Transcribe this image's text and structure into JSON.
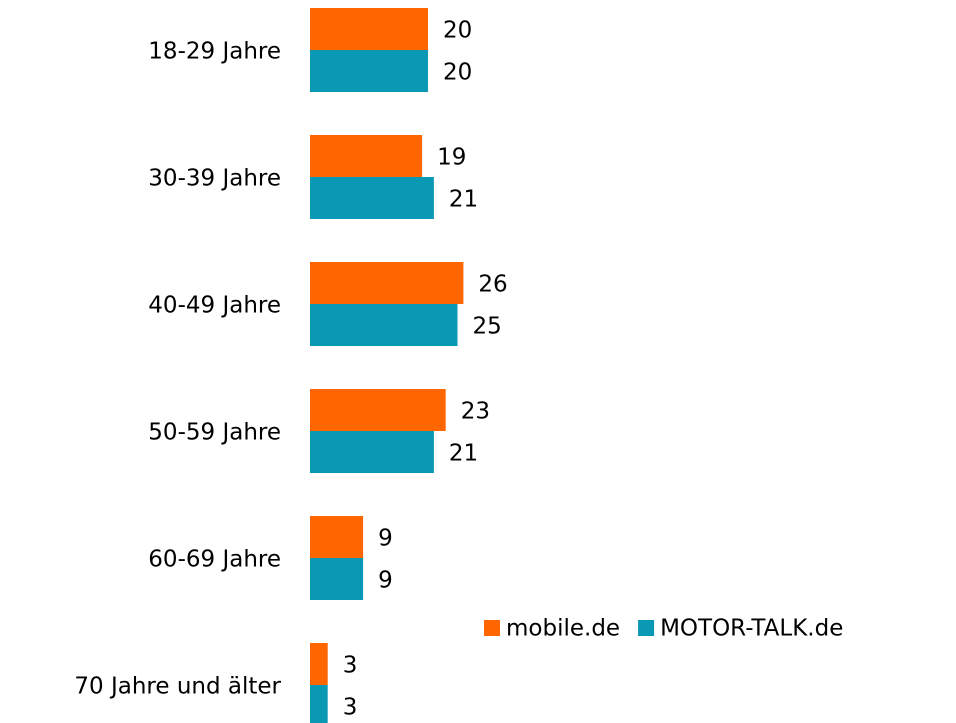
{
  "chart_data": {
    "type": "hbar",
    "categories": [
      "18-29 Jahre",
      "30-39 Jahre",
      "40-49 Jahre",
      "50-59 Jahre",
      "60-69 Jahre",
      "70 Jahre und älter"
    ],
    "series": [
      {
        "name": "mobile.de",
        "color": "#ff6600",
        "values": [
          20,
          19,
          26,
          23,
          9,
          3
        ]
      },
      {
        "name": "MOTOR-TALK.de",
        "color": "#0a99b5",
        "values": [
          20,
          21,
          25,
          21,
          9,
          3
        ]
      }
    ],
    "xlim": [
      0,
      100
    ],
    "legend": "lower right"
  }
}
